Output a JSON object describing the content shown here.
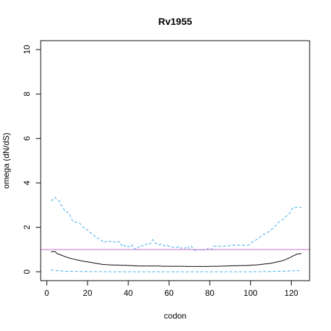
{
  "chart_data": {
    "type": "line",
    "title": "Rv1955",
    "xlabel": "codon",
    "ylabel": "omega (dN/dS)",
    "xlim": [
      -3,
      129
    ],
    "ylim": [
      -0.4,
      10.4
    ],
    "xticks": [
      0,
      20,
      40,
      60,
      80,
      100,
      120
    ],
    "yticks": [
      0,
      2,
      4,
      6,
      8,
      10
    ],
    "grid": false,
    "reference_line": {
      "y": 1,
      "color": "#cc66cc"
    },
    "series": [
      {
        "style": "solid",
        "color": "#000000",
        "x": [
          2,
          4,
          5,
          7,
          9,
          11,
          13,
          15,
          17,
          19,
          21,
          23,
          25,
          27,
          29,
          31,
          33,
          35,
          37,
          39,
          41,
          43,
          45,
          47,
          49,
          51,
          53,
          55,
          57,
          59,
          61,
          63,
          65,
          67,
          69,
          71,
          73,
          75,
          77,
          79,
          81,
          83,
          85,
          87,
          89,
          91,
          93,
          95,
          97,
          99,
          101,
          103,
          105,
          107,
          109,
          111,
          113,
          115,
          117,
          119,
          121,
          123,
          125
        ],
        "y": [
          0.9,
          0.92,
          0.82,
          0.75,
          0.68,
          0.62,
          0.57,
          0.53,
          0.49,
          0.46,
          0.43,
          0.4,
          0.37,
          0.34,
          0.32,
          0.31,
          0.3,
          0.3,
          0.29,
          0.29,
          0.28,
          0.27,
          0.26,
          0.26,
          0.26,
          0.26,
          0.26,
          0.26,
          0.25,
          0.25,
          0.25,
          0.25,
          0.25,
          0.25,
          0.24,
          0.24,
          0.24,
          0.24,
          0.24,
          0.24,
          0.25,
          0.25,
          0.25,
          0.26,
          0.26,
          0.27,
          0.27,
          0.28,
          0.28,
          0.29,
          0.3,
          0.31,
          0.33,
          0.35,
          0.37,
          0.4,
          0.44,
          0.48,
          0.54,
          0.62,
          0.72,
          0.8,
          0.82
        ]
      },
      {
        "style": "dashed",
        "color": "#33aaee",
        "x": [
          2,
          3,
          4,
          5,
          6,
          7,
          8,
          9,
          10,
          11,
          12,
          13,
          14,
          15,
          16,
          17,
          18,
          19,
          20,
          21,
          22,
          23,
          24,
          25,
          26,
          27,
          28,
          29,
          30,
          31,
          32,
          33,
          34,
          35,
          36,
          37,
          38,
          39,
          40,
          41,
          42,
          43,
          44,
          45,
          46,
          47,
          48,
          49,
          50,
          51,
          52,
          53,
          54,
          55,
          56,
          57,
          58,
          59,
          60,
          61,
          62,
          63,
          64,
          65,
          66,
          67,
          68,
          69,
          70,
          71,
          72,
          73,
          74,
          75,
          76,
          77,
          78,
          79,
          80,
          81,
          82,
          83,
          84,
          85,
          86,
          87,
          88,
          89,
          90,
          91,
          92,
          93,
          94,
          95,
          96,
          97,
          98,
          99,
          100,
          101,
          102,
          103,
          104,
          105,
          106,
          107,
          108,
          109,
          110,
          111,
          112,
          113,
          114,
          115,
          116,
          117,
          118,
          119,
          120,
          121,
          122,
          123,
          124,
          125
        ],
        "y": [
          3.2,
          3.25,
          3.35,
          3.25,
          3.2,
          3.0,
          2.9,
          2.7,
          2.7,
          2.6,
          2.4,
          2.25,
          2.25,
          2.2,
          2.2,
          2.1,
          2.0,
          1.9,
          1.9,
          1.8,
          1.7,
          1.65,
          1.55,
          1.5,
          1.5,
          1.4,
          1.3,
          1.35,
          1.4,
          1.35,
          1.4,
          1.35,
          1.3,
          1.35,
          1.35,
          1.15,
          1.2,
          1.1,
          1.15,
          1.1,
          1.2,
          1.05,
          1.0,
          1.1,
          1.2,
          1.15,
          1.2,
          1.25,
          1.2,
          1.3,
          1.45,
          1.3,
          1.25,
          1.2,
          1.25,
          1.2,
          1.15,
          1.2,
          1.15,
          1.15,
          1.1,
          1.1,
          1.1,
          1.15,
          1.05,
          1.1,
          1.05,
          1.15,
          1.05,
          1.15,
          1.0,
          0.95,
          1.0,
          1.0,
          0.95,
          1.0,
          0.95,
          1.05,
          1.05,
          1.0,
          1.15,
          1.15,
          1.15,
          1.15,
          1.15,
          1.15,
          1.15,
          1.15,
          1.2,
          1.2,
          1.2,
          1.2,
          1.2,
          1.2,
          1.2,
          1.2,
          1.2,
          1.2,
          1.25,
          1.35,
          1.4,
          1.45,
          1.5,
          1.6,
          1.65,
          1.7,
          1.75,
          1.8,
          1.9,
          1.95,
          2.05,
          2.15,
          2.25,
          2.3,
          2.35,
          2.45,
          2.55,
          2.6,
          2.8,
          2.9,
          2.9,
          2.9,
          2.9,
          2.9
        ]
      },
      {
        "style": "dashed",
        "color": "#33aaee",
        "x": [
          2,
          4,
          6,
          8,
          10,
          15,
          20,
          30,
          40,
          50,
          60,
          70,
          80,
          90,
          100,
          110,
          115,
          120,
          125
        ],
        "y": [
          0.08,
          0.06,
          0.04,
          0.03,
          0.02,
          0.01,
          0.01,
          0.0,
          0.0,
          0.0,
          0.0,
          0.0,
          0.0,
          0.0,
          0.0,
          0.01,
          0.02,
          0.04,
          0.06
        ]
      }
    ]
  }
}
